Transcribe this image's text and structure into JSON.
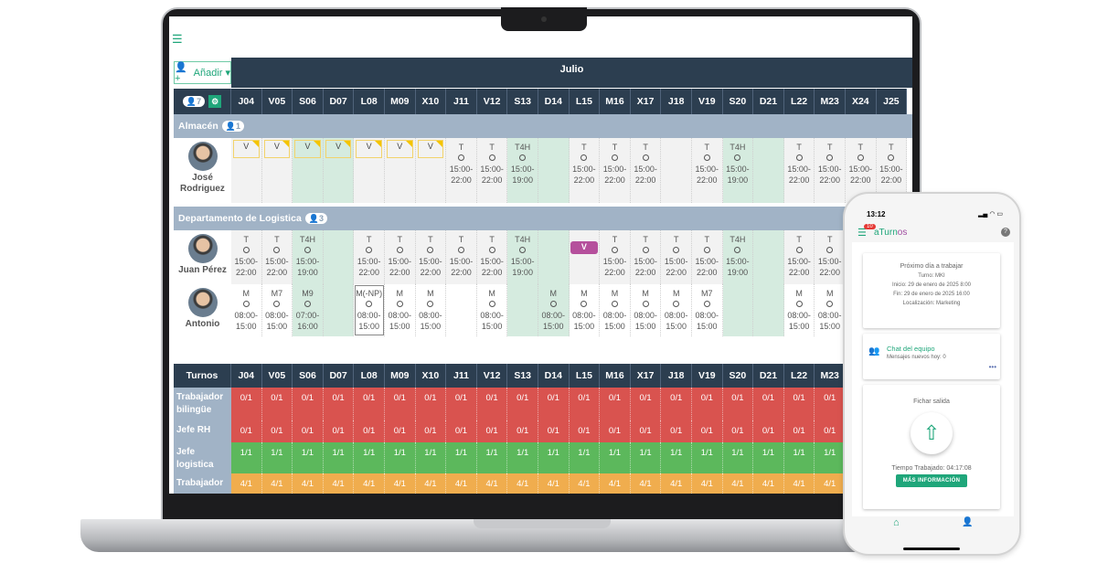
{
  "app": {
    "add_label": "Añadir",
    "month": "Julio",
    "header_count": "7"
  },
  "days": [
    "J04",
    "V05",
    "S06",
    "D07",
    "L08",
    "M09",
    "X10",
    "J11",
    "V12",
    "S13",
    "D14",
    "L15",
    "M16",
    "X17",
    "J18",
    "V19",
    "S20",
    "D21",
    "L22",
    "M23",
    "X24",
    "J25"
  ],
  "weekend_days": [
    "S06",
    "D07",
    "S13",
    "D14",
    "S20",
    "D21"
  ],
  "groups": [
    {
      "name": "Almacén",
      "count": "1",
      "people": [
        {
          "name": "José Rodriguez",
          "shifts": [
            [
              "V",
              ""
            ],
            [
              "V",
              ""
            ],
            [
              "V",
              ""
            ],
            [
              "V",
              ""
            ],
            [
              "V",
              ""
            ],
            [
              "V",
              ""
            ],
            [
              "V",
              ""
            ],
            [
              "T",
              "15:00-22:00"
            ],
            [
              "T",
              "15:00-22:00"
            ],
            [
              "T4H",
              "15:00-19:00"
            ],
            [
              "",
              ""
            ],
            [
              "T",
              "15:00-22:00"
            ],
            [
              "T",
              "15:00-22:00"
            ],
            [
              "T",
              "15:00-22:00"
            ],
            [
              "",
              ""
            ],
            [
              "T",
              "15:00-22:00"
            ],
            [
              "T4H",
              "15:00-19:00"
            ],
            [
              "",
              ""
            ],
            [
              "T",
              "15:00-22:00"
            ],
            [
              "T",
              "15:00-22:00"
            ],
            [
              "T",
              "15:00-22:00"
            ],
            [
              "T",
              "15:00-22:00"
            ]
          ]
        }
      ]
    },
    {
      "name": "Departamento de Logistica",
      "count": "3",
      "people": [
        {
          "name": "Juan Pérez",
          "shifts": [
            [
              "T",
              "15:00-22:00"
            ],
            [
              "T",
              "15:00-22:00"
            ],
            [
              "T4H",
              "15:00-19:00"
            ],
            [
              "",
              ""
            ],
            [
              "T",
              "15:00-22:00"
            ],
            [
              "T",
              "15:00-22:00"
            ],
            [
              "T",
              "15:00-22:00"
            ],
            [
              "T",
              "15:00-22:00"
            ],
            [
              "T",
              "15:00-22:00"
            ],
            [
              "T4H",
              "15:00-19:00"
            ],
            [
              "",
              ""
            ],
            [
              "V*",
              ""
            ],
            [
              "T",
              "15:00-22:00"
            ],
            [
              "T",
              "15:00-22:00"
            ],
            [
              "T",
              "15:00-22:00"
            ],
            [
              "T",
              "15:00-22:00"
            ],
            [
              "T4H",
              "15:00-19:00"
            ],
            [
              "",
              ""
            ],
            [
              "T",
              "15:00-22:00"
            ],
            [
              "T",
              "15:00-22:00"
            ]
          ]
        },
        {
          "name": "Antonio",
          "shifts": [
            [
              "M",
              "08:00-15:00"
            ],
            [
              "M7",
              "08:00-15:00"
            ],
            [
              "M9",
              "07:00-16:00"
            ],
            [
              "",
              ""
            ],
            [
              "M(-NP)",
              "08:00-15:00"
            ],
            [
              "M",
              "08:00-15:00"
            ],
            [
              "M",
              "08:00-15:00"
            ],
            [
              "",
              ""
            ],
            [
              "M",
              "08:00-15:00"
            ],
            [
              "",
              ""
            ],
            [
              "M",
              "08:00-15:00"
            ],
            [
              "M",
              "08:00-15:00"
            ],
            [
              "M",
              "08:00-15:00"
            ],
            [
              "M",
              "08:00-15:00"
            ],
            [
              "M",
              "08:00-15:00"
            ],
            [
              "M7",
              "08:00-15:00"
            ],
            [
              "",
              ""
            ],
            [
              "",
              ""
            ],
            [
              "M",
              "08:00-15:00"
            ],
            [
              "M",
              "08:00-15:00"
            ]
          ]
        }
      ]
    }
  ],
  "coverage": {
    "header": "Turnos",
    "rows": [
      {
        "label": "Trabajador bilingüe",
        "value": "0/1",
        "color": "#d9534f"
      },
      {
        "label": "Jefe RH",
        "value": "0/1",
        "color": "#d9534f"
      },
      {
        "label": "Jefe logistica",
        "value": "1/1",
        "color": "#5cb85c"
      },
      {
        "label": "Trabajador",
        "value": "4/1",
        "color": "#f0ad4e"
      }
    ],
    "visible_days": 20
  },
  "phone": {
    "time": "13:12",
    "badge": "10",
    "logo_a": "aTurn",
    "logo_b": "os",
    "next_day": {
      "title": "Próximo día a trabajar",
      "turno": "Turno: MKI",
      "inicio": "Inicio: 29 de enero de 2025 8:00",
      "fin": "Fin: 29 de enero de 2025 16:00",
      "loc": "Localización: Marketing"
    },
    "chat": {
      "title": "Chat del equipo",
      "sub": "Mensajes nuevos hoy: 0"
    },
    "clock": {
      "title": "Fichar salida",
      "worked": "Tiempo Trabajado: 04:17:08",
      "button": "MÁS INFORMACIÓN"
    }
  },
  "colors": {
    "accent": "#1fa67a",
    "header": "#2c3e50",
    "group": "#a1b3c6",
    "weekend": "#d5ebdf",
    "vacation_purple": "#b5509c"
  }
}
